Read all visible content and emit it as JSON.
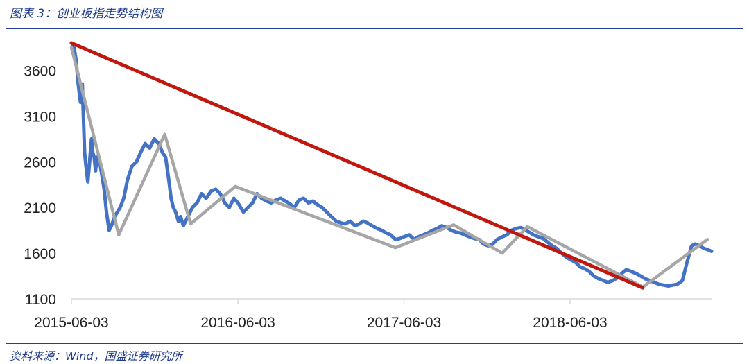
{
  "figure": {
    "title": "图表 3：创业板指走势结构图",
    "source": "资料来源：Wind，国盛证券研究所"
  },
  "colors": {
    "frame": "#1f3f99",
    "index_line": "#4472c4",
    "structure_line": "#a6a6a6",
    "trend_line": "#c0170f"
  },
  "chart_data": {
    "type": "line",
    "title": "",
    "xlabel": "",
    "ylabel": "",
    "x_type": "date",
    "x_range": [
      "2015-06-03",
      "2019-04-10"
    ],
    "ylim": [
      1100,
      3900
    ],
    "y_ticks": [
      1100,
      1600,
      2100,
      2600,
      3100,
      3600
    ],
    "x_ticks": [
      "2015-06-03",
      "2016-06-03",
      "2017-06-03",
      "2018-06-03"
    ],
    "grid": false,
    "legend": "none",
    "series": [
      {
        "color": "#4472c4",
        "x": [
          "2015-06-03",
          "2015-06-08",
          "2015-06-13",
          "2015-06-18",
          "2015-06-23",
          "2015-06-27",
          "2015-07-02",
          "2015-07-05",
          "2015-07-09",
          "2015-07-13",
          "2015-07-17",
          "2015-07-20",
          "2015-07-23",
          "2015-07-26",
          "2015-07-29",
          "2015-08-04",
          "2015-08-09",
          "2015-08-14",
          "2015-08-19",
          "2015-08-25",
          "2015-08-30",
          "2015-09-06",
          "2015-09-12",
          "2015-09-18",
          "2015-09-26",
          "2015-10-04",
          "2015-10-14",
          "2015-10-24",
          "2015-11-02",
          "2015-11-12",
          "2015-11-22",
          "2015-12-02",
          "2015-12-12",
          "2015-12-20",
          "2015-12-27",
          "2016-01-03",
          "2016-01-08",
          "2016-01-13",
          "2016-01-18",
          "2016-01-24",
          "2016-01-29",
          "2016-02-04",
          "2016-02-14",
          "2016-02-24",
          "2016-03-05",
          "2016-03-15",
          "2016-03-25",
          "2016-04-05",
          "2016-04-15",
          "2016-04-25",
          "2016-05-05",
          "2016-05-15",
          "2016-05-25",
          "2016-06-03",
          "2016-06-15",
          "2016-06-25",
          "2016-07-05",
          "2016-07-15",
          "2016-07-25",
          "2016-08-05",
          "2016-08-15",
          "2016-08-25",
          "2016-09-05",
          "2016-09-15",
          "2016-09-25",
          "2016-10-05",
          "2016-10-15",
          "2016-10-25",
          "2016-11-05",
          "2016-11-15",
          "2016-11-25",
          "2016-12-05",
          "2016-12-15",
          "2016-12-25",
          "2017-01-05",
          "2017-01-15",
          "2017-01-25",
          "2017-02-05",
          "2017-02-15",
          "2017-02-25",
          "2017-03-05",
          "2017-03-15",
          "2017-03-25",
          "2017-04-05",
          "2017-04-15",
          "2017-04-25",
          "2017-05-05",
          "2017-05-15",
          "2017-05-25",
          "2017-06-03",
          "2017-06-15",
          "2017-06-25",
          "2017-07-05",
          "2017-07-15",
          "2017-07-25",
          "2017-08-05",
          "2017-08-15",
          "2017-08-25",
          "2017-09-05",
          "2017-09-15",
          "2017-09-25",
          "2017-10-05",
          "2017-10-15",
          "2017-10-25",
          "2017-11-05",
          "2017-11-15",
          "2017-11-25",
          "2017-12-05",
          "2017-12-15",
          "2017-12-25",
          "2018-01-05",
          "2018-01-15",
          "2018-01-25",
          "2018-02-05",
          "2018-02-15",
          "2018-02-25",
          "2018-03-05",
          "2018-03-15",
          "2018-03-25",
          "2018-04-05",
          "2018-04-15",
          "2018-04-25",
          "2018-05-05",
          "2018-05-15",
          "2018-05-25",
          "2018-06-03",
          "2018-06-15",
          "2018-06-25",
          "2018-07-05",
          "2018-07-15",
          "2018-07-25",
          "2018-08-05",
          "2018-08-15",
          "2018-08-25",
          "2018-09-05",
          "2018-09-15",
          "2018-09-25",
          "2018-10-05",
          "2018-10-15",
          "2018-10-25",
          "2018-11-05",
          "2018-11-15",
          "2018-11-25",
          "2018-12-05",
          "2018-12-15",
          "2018-12-25",
          "2019-01-05",
          "2019-01-15",
          "2019-01-25",
          "2019-02-05",
          "2019-02-15",
          "2019-02-25",
          "2019-03-05",
          "2019-03-15",
          "2019-03-25",
          "2019-04-01",
          "2019-04-10"
        ],
        "y": [
          3900,
          3870,
          3720,
          3450,
          3250,
          3450,
          2700,
          2550,
          2380,
          2600,
          2850,
          2700,
          2650,
          2500,
          2650,
          2600,
          2450,
          2300,
          2050,
          1850,
          1900,
          2000,
          2050,
          2100,
          2200,
          2400,
          2550,
          2600,
          2700,
          2800,
          2750,
          2850,
          2800,
          2700,
          2650,
          2400,
          2200,
          2100,
          2050,
          1950,
          2000,
          1900,
          2000,
          2100,
          2150,
          2250,
          2200,
          2280,
          2300,
          2250,
          2150,
          2100,
          2200,
          2150,
          2050,
          2100,
          2150,
          2250,
          2200,
          2170,
          2150,
          2180,
          2200,
          2170,
          2140,
          2100,
          2180,
          2200,
          2150,
          2170,
          2130,
          2100,
          2050,
          2000,
          1950,
          1930,
          1920,
          1950,
          1900,
          1920,
          1950,
          1930,
          1900,
          1870,
          1850,
          1820,
          1800,
          1750,
          1760,
          1780,
          1800,
          1750,
          1780,
          1800,
          1820,
          1850,
          1870,
          1900,
          1880,
          1850,
          1830,
          1820,
          1800,
          1780,
          1760,
          1750,
          1700,
          1680,
          1700,
          1750,
          1780,
          1800,
          1850,
          1870,
          1880,
          1850,
          1830,
          1800,
          1780,
          1760,
          1720,
          1680,
          1650,
          1600,
          1560,
          1530,
          1500,
          1450,
          1430,
          1400,
          1350,
          1320,
          1300,
          1280,
          1300,
          1330,
          1380,
          1420,
          1400,
          1380,
          1350,
          1320,
          1300,
          1280,
          1260,
          1250,
          1240,
          1250,
          1260,
          1300,
          1500,
          1680,
          1700,
          1680,
          1650,
          1640,
          1620
        ]
      },
      {
        "color": "#a6a6a6",
        "x": [
          "2015-06-03",
          "2015-09-15",
          "2015-12-25",
          "2016-02-20",
          "2016-05-28",
          "2017-05-15",
          "2017-09-20",
          "2018-01-05",
          "2018-03-01",
          "2018-11-10",
          "2019-04-01"
        ],
        "y": [
          3850,
          1800,
          2900,
          1920,
          2330,
          1660,
          1910,
          1600,
          1890,
          1230,
          1750
        ]
      },
      {
        "color": "#c0170f",
        "x": [
          "2015-06-03",
          "2018-11-10"
        ],
        "y": [
          3900,
          1220
        ]
      }
    ]
  }
}
